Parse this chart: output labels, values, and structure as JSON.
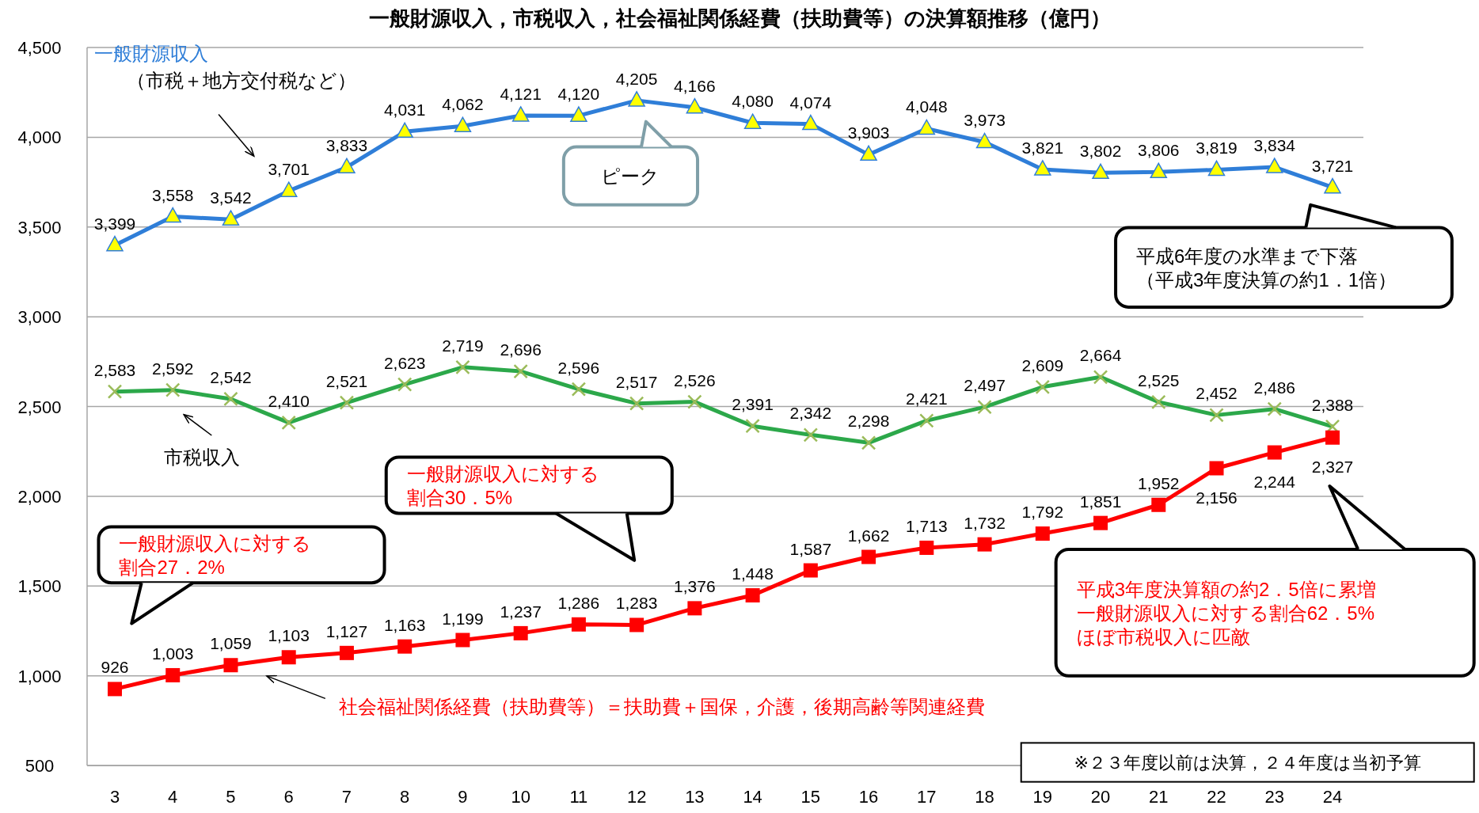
{
  "chart_data": {
    "type": "line",
    "title": "一般財源収入，市税収入，社会福祉関係経費（扶助費等）の決算額推移（億円）",
    "categories": [
      "3",
      "4",
      "5",
      "6",
      "7",
      "8",
      "9",
      "10",
      "11",
      "12",
      "13",
      "14",
      "15",
      "16",
      "17",
      "18",
      "19",
      "20",
      "21",
      "22",
      "23",
      "24"
    ],
    "ylim": [
      500,
      4500
    ],
    "yticks": [
      {
        "value": 500,
        "label": "500"
      },
      {
        "value": 1000,
        "label": "1,000"
      },
      {
        "value": 1500,
        "label": "1,500"
      },
      {
        "value": 2000,
        "label": "2,000"
      },
      {
        "value": 2500,
        "label": "2,500"
      },
      {
        "value": 3000,
        "label": "3,000"
      },
      {
        "value": 3500,
        "label": "3,500"
      },
      {
        "value": 4000,
        "label": "4,000"
      },
      {
        "value": 4500,
        "label": "4,500"
      }
    ],
    "grid": "y",
    "series": [
      {
        "name": "一般財源収入",
        "color": "#2f7ed8",
        "marker": "triangle",
        "values": [
          3399,
          3558,
          3542,
          3701,
          3833,
          4031,
          4062,
          4121,
          4120,
          4205,
          4166,
          4080,
          4074,
          3903,
          4048,
          3973,
          3821,
          3802,
          3806,
          3819,
          3834,
          3721
        ],
        "value_labels": [
          "3,399",
          "3,558",
          "3,542",
          "3,701",
          "3,833",
          "4,031",
          "4,062",
          "4,121",
          "4,120",
          "4,205",
          "4,166",
          "4,080",
          "4,074",
          "3,903",
          "4,048",
          "3,973",
          "3,821",
          "3,802",
          "3,806",
          "3,819",
          "3,834",
          "3,721"
        ]
      },
      {
        "name": "市税収入",
        "color": "#2ca84a",
        "marker": "cross",
        "values": [
          2583,
          2592,
          2542,
          2410,
          2521,
          2623,
          2719,
          2696,
          2596,
          2517,
          2526,
          2391,
          2342,
          2298,
          2421,
          2497,
          2609,
          2664,
          2525,
          2452,
          2486,
          2388
        ],
        "value_labels": [
          "2,583",
          "2,592",
          "2,542",
          "2,410",
          "2,521",
          "2,623",
          "2,719",
          "2,696",
          "2,596",
          "2,517",
          "2,526",
          "2,391",
          "2,342",
          "2,298",
          "2,421",
          "2,497",
          "2,609",
          "2,664",
          "2,525",
          "2,452",
          "2,486",
          "2,388"
        ]
      },
      {
        "name": "社会福祉関係経費（扶助費等）＝扶助費＋国保，介護，後期高齢等関連経費",
        "color": "#ff0000",
        "marker": "square",
        "values": [
          926,
          1003,
          1059,
          1103,
          1127,
          1163,
          1199,
          1237,
          1286,
          1283,
          1376,
          1448,
          1587,
          1662,
          1713,
          1732,
          1792,
          1851,
          1952,
          2156,
          2244,
          2327
        ],
        "value_labels": [
          "926",
          "1,003",
          "1,059",
          "1,103",
          "1,127",
          "1,163",
          "1,199",
          "1,237",
          "1,286",
          "1,283",
          "1,376",
          "1,448",
          "1,587",
          "1,662",
          "1,713",
          "1,732",
          "1,792",
          "1,851",
          "1,952",
          "2,156",
          "2,244",
          "2,327"
        ]
      }
    ],
    "annotations": [
      "（市税＋地方交付税など）",
      "ピーク",
      "平成6年度の水準まで下落（平成3年度決算の約1．1倍）",
      "一般財源収入に対する割合27．2%",
      "一般財源収入に対する割合30．5%",
      "平成3年度決算額の約2．5倍に累増一般財源収入に対する割合62．5%ほぼ市税収入に匹敵",
      "※２３年度以前は決算，２４年度は当初予算"
    ]
  }
}
